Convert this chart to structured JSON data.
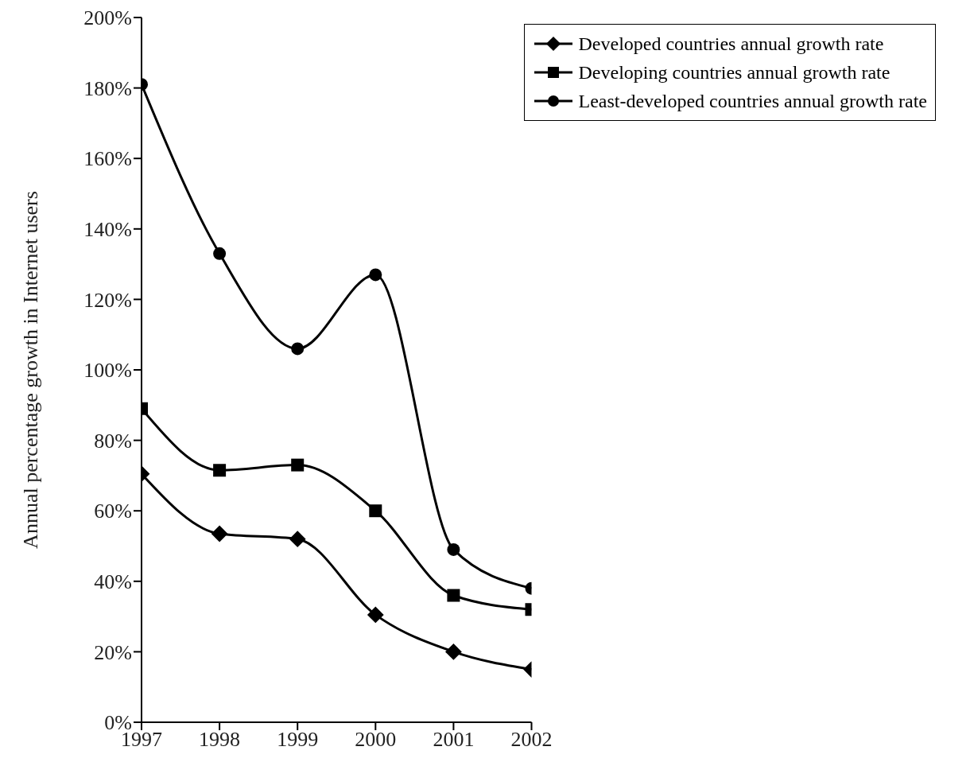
{
  "chart_data": {
    "type": "line",
    "ylabel": "Annual percentage growth in Internet users",
    "x": [
      1997,
      1998,
      1999,
      2000,
      2001,
      2002
    ],
    "xlim": [
      1997,
      2002
    ],
    "xticks": [
      1997,
      1998,
      1999,
      2000,
      2001,
      2002
    ],
    "ylim": [
      0,
      200
    ],
    "yticks": [
      {
        "value": 0,
        "label": "0%"
      },
      {
        "value": 20,
        "label": "20%"
      },
      {
        "value": 40,
        "label": "40%"
      },
      {
        "value": 60,
        "label": "60%"
      },
      {
        "value": 80,
        "label": "80%"
      },
      {
        "value": 100,
        "label": "100%"
      },
      {
        "value": 120,
        "label": "120%"
      },
      {
        "value": 140,
        "label": "140%"
      },
      {
        "value": 160,
        "label": "160%"
      },
      {
        "value": 180,
        "label": "180%"
      },
      {
        "value": 200,
        "label": "200%"
      }
    ],
    "legend": "top right",
    "series": [
      {
        "name": "Developed countries annual growth rate",
        "color": "#000000",
        "marker": "diamond",
        "values": [
          70.5,
          53.5,
          52,
          30.5,
          20,
          15
        ]
      },
      {
        "name": "Developing countries annual growth rate",
        "color": "#000000",
        "marker": "square",
        "values": [
          89,
          71.5,
          73,
          60,
          36,
          32
        ]
      },
      {
        "name": "Least-developed countries annual growth rate",
        "color": "#000000",
        "marker": "circle",
        "values": [
          181,
          133,
          106,
          127,
          49,
          38
        ]
      }
    ]
  }
}
